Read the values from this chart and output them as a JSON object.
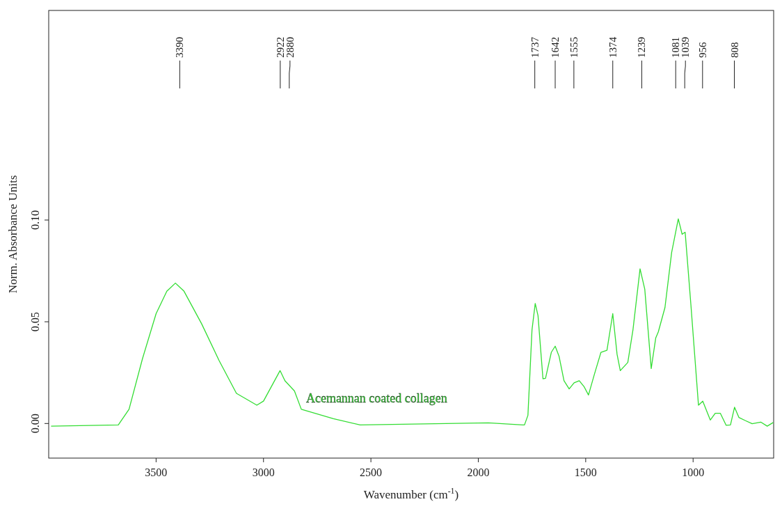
{
  "chart_data": {
    "type": "line",
    "xlabel": "Wavenumber (cm$^{-1}$)",
    "ylabel": "Norm. Absorbance Units",
    "xlim": [
      4000,
      625
    ],
    "xticks": [
      3500,
      3000,
      2500,
      2000,
      1500,
      1000
    ],
    "ylim": [
      -0.017,
      0.203
    ],
    "yticks": [
      {
        "value": 0,
        "label": "0.00"
      },
      {
        "value": 0.05,
        "label": "0.05"
      },
      {
        "value": 0.1,
        "label": "0.10"
      }
    ],
    "grid": false,
    "marker": "none",
    "line_style": "solid",
    "series": [
      {
        "name": "Acemannan coated collagen",
        "color": "#33dd33",
        "x": [
          3989,
          3676,
          3626,
          3563,
          3500,
          3450,
          3410,
          3370,
          3288,
          3207,
          3126,
          3031,
          3000,
          2923,
          2900,
          2856,
          2824,
          2675,
          2550,
          1953,
          1793,
          1785,
          1769,
          1750,
          1735,
          1722,
          1699,
          1687,
          1660,
          1642,
          1624,
          1601,
          1577,
          1554,
          1530,
          1507,
          1487,
          1460,
          1429,
          1401,
          1374,
          1354,
          1339,
          1304,
          1280,
          1247,
          1225,
          1195,
          1174,
          1162,
          1131,
          1100,
          1069,
          1051,
          1037,
          1010,
          975,
          955,
          920,
          897,
          873,
          846,
          826,
          807,
          787,
          756,
          725,
          685,
          655,
          627
        ],
        "values": [
          -0.0013,
          -0.0007,
          0.007,
          0.032,
          0.054,
          0.065,
          0.069,
          0.065,
          0.049,
          0.031,
          0.0148,
          0.009,
          0.011,
          0.026,
          0.021,
          0.016,
          0.007,
          0.0024,
          -0.0007,
          0.0003,
          -0.0007,
          -0.0007,
          0.004,
          0.046,
          0.059,
          0.053,
          0.022,
          0.0222,
          0.035,
          0.038,
          0.033,
          0.021,
          0.017,
          0.02,
          0.021,
          0.018,
          0.014,
          0.024,
          0.035,
          0.036,
          0.054,
          0.034,
          0.026,
          0.03,
          0.046,
          0.076,
          0.066,
          0.027,
          0.042,
          0.045,
          0.057,
          0.084,
          0.1006,
          0.093,
          0.094,
          0.058,
          0.009,
          0.011,
          0.0017,
          0.005,
          0.005,
          -0.0009,
          -0.0007,
          0.008,
          0.003,
          0.0014,
          -0.0001,
          0.0007,
          -0.0013,
          0.0005
        ]
      }
    ],
    "ref_lines": [
      {
        "axis": "x",
        "value": 3390,
        "label": "3390"
      },
      {
        "axis": "x",
        "value": 2922,
        "label": "2922"
      },
      {
        "axis": "x",
        "value": 2880,
        "label": "2880"
      },
      {
        "axis": "x",
        "value": 1737,
        "label": "1737"
      },
      {
        "axis": "x",
        "value": 1642,
        "label": "1642"
      },
      {
        "axis": "x",
        "value": 1555,
        "label": "1555"
      },
      {
        "axis": "x",
        "value": 1374,
        "label": "1374"
      },
      {
        "axis": "x",
        "value": 1239,
        "label": "1239"
      },
      {
        "axis": "x",
        "value": 1081,
        "label": "1081"
      },
      {
        "axis": "x",
        "value": 1039,
        "label": "1039"
      },
      {
        "axis": "x",
        "value": 956,
        "label": "956"
      },
      {
        "axis": "x",
        "value": 808,
        "label": "808"
      }
    ]
  }
}
